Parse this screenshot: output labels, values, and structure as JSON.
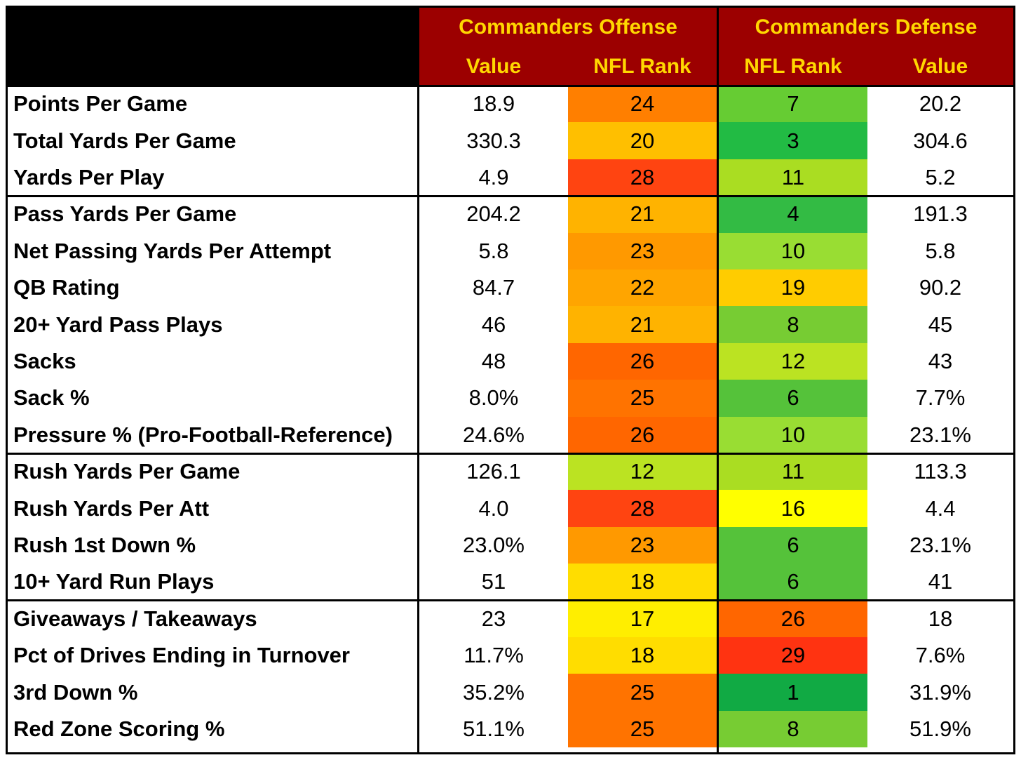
{
  "header": {
    "offense_title": "Commanders Offense",
    "defense_title": "Commanders Defense",
    "value_label": "Value",
    "rank_label": "NFL Rank"
  },
  "colors": {
    "header_bg": "#9c0000",
    "header_text": "#ffd700"
  },
  "rows": [
    {
      "label": "Points Per Game",
      "off_value": "18.9",
      "off_rank": "24",
      "def_rank": "7",
      "def_value": "20.2",
      "off_color": "#ff7f00",
      "def_color": "#66cc33"
    },
    {
      "label": "Total Yards Per Game",
      "off_value": "330.3",
      "off_rank": "20",
      "def_rank": "3",
      "def_value": "304.6",
      "off_color": "#ffbf00",
      "def_color": "#22bb44"
    },
    {
      "label": "Yards Per Play",
      "off_value": "4.9",
      "off_rank": "28",
      "def_rank": "11",
      "def_value": "5.2",
      "off_color": "#ff4411",
      "def_color": "#aadd22"
    },
    {
      "label": "Pass Yards Per Game",
      "off_value": "204.2",
      "off_rank": "21",
      "def_rank": "4",
      "def_value": "191.3",
      "off_color": "#ffb300",
      "def_color": "#33bb44"
    },
    {
      "label": "Net Passing Yards Per Attempt",
      "off_value": "5.8",
      "off_rank": "23",
      "def_rank": "10",
      "def_value": "5.8",
      "off_color": "#ff9900",
      "def_color": "#99dd33"
    },
    {
      "label": "QB Rating",
      "off_value": "84.7",
      "off_rank": "22",
      "def_rank": "19",
      "def_value": "90.2",
      "off_color": "#ffa500",
      "def_color": "#ffcc00"
    },
    {
      "label": "20+ Yard Pass Plays",
      "off_value": "46",
      "off_rank": "21",
      "def_rank": "8",
      "def_value": "45",
      "off_color": "#ffb300",
      "def_color": "#77cc33"
    },
    {
      "label": "Sacks",
      "off_value": "48",
      "off_rank": "26",
      "def_rank": "12",
      "def_value": "43",
      "off_color": "#ff6600",
      "def_color": "#bbe322"
    },
    {
      "label": "Sack %",
      "off_value": "8.0%",
      "off_rank": "25",
      "def_rank": "6",
      "def_value": "7.7%",
      "off_color": "#ff7300",
      "def_color": "#55c23a"
    },
    {
      "label": "Pressure % (Pro-Football-Reference)",
      "off_value": "24.6%",
      "off_rank": "26",
      "def_rank": "10",
      "def_value": "23.1%",
      "off_color": "#ff6600",
      "def_color": "#99dd33"
    },
    {
      "label": "Rush Yards Per Game",
      "off_value": "126.1",
      "off_rank": "12",
      "def_rank": "11",
      "def_value": "113.3",
      "off_color": "#bbe322",
      "def_color": "#aadd22"
    },
    {
      "label": "Rush Yards Per Att",
      "off_value": "4.0",
      "off_rank": "28",
      "def_rank": "16",
      "def_value": "4.4",
      "off_color": "#ff4411",
      "def_color": "#ffff00"
    },
    {
      "label": "Rush 1st Down %",
      "off_value": "23.0%",
      "off_rank": "23",
      "def_rank": "6",
      "def_value": "23.1%",
      "off_color": "#ff9900",
      "def_color": "#55c23a"
    },
    {
      "label": "10+ Yard Run Plays",
      "off_value": "51",
      "off_rank": "18",
      "def_rank": "6",
      "def_value": "41",
      "off_color": "#ffdd00",
      "def_color": "#55c23a"
    },
    {
      "label": "Giveaways / Takeaways",
      "off_value": "23",
      "off_rank": "17",
      "def_rank": "26",
      "def_value": "18",
      "off_color": "#ffee00",
      "def_color": "#ff6600"
    },
    {
      "label": "Pct of Drives Ending in Turnover",
      "off_value": "11.7%",
      "off_rank": "18",
      "def_rank": "29",
      "def_value": "7.6%",
      "off_color": "#ffdd00",
      "def_color": "#ff3311"
    },
    {
      "label": "3rd Down %",
      "off_value": "35.2%",
      "off_rank": "25",
      "def_rank": "1",
      "def_value": "31.9%",
      "off_color": "#ff7300",
      "def_color": "#11aa44"
    },
    {
      "label": "Red Zone Scoring %",
      "off_value": "51.1%",
      "off_rank": "25",
      "def_rank": "8",
      "def_value": "51.9%",
      "off_color": "#ff7300",
      "def_color": "#77cc33"
    }
  ]
}
